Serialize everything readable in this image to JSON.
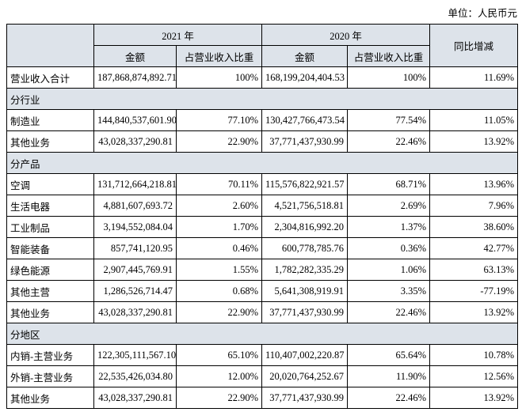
{
  "unit": "单位：人民币元",
  "table": {
    "header": {
      "year_a": "2021 年",
      "year_b": "2020 年",
      "yoy": "同比增减",
      "amount_a": "金额",
      "share_a": "占营业收入比重",
      "amount_b": "金额",
      "share_b": "占营业收入比重"
    },
    "rows": [
      [
        "营业收入合计",
        "187,868,874,892.71",
        "100%",
        "168,199,204,404.53",
        "100%",
        "11.69%"
      ],
      [
        "分行业"
      ],
      [
        "制造业",
        "144,840,537,601.90",
        "77.10%",
        "130,427,766,473.54",
        "77.54%",
        "11.05%"
      ],
      [
        "其他业务",
        "43,028,337,290.81",
        "22.90%",
        "37,771,437,930.99",
        "22.46%",
        "13.92%"
      ],
      [
        "分产品"
      ],
      [
        "空调",
        "131,712,664,218.81",
        "70.11%",
        "115,576,822,921.57",
        "68.71%",
        "13.96%"
      ],
      [
        "生活电器",
        "4,881,607,693.72",
        "2.60%",
        "4,521,756,518.81",
        "2.69%",
        "7.96%"
      ],
      [
        "工业制品",
        "3,194,552,084.04",
        "1.70%",
        "2,304,816,992.20",
        "1.37%",
        "38.60%"
      ],
      [
        "智能装备",
        "857,741,120.95",
        "0.46%",
        "600,778,785.76",
        "0.36%",
        "42.77%"
      ],
      [
        "绿色能源",
        "2,907,445,769.91",
        "1.55%",
        "1,782,282,335.29",
        "1.06%",
        "63.13%"
      ],
      [
        "其他主营",
        "1,286,526,714.47",
        "0.68%",
        "5,641,308,919.91",
        "3.35%",
        "-77.19%"
      ],
      [
        "其他业务",
        "43,028,337,290.81",
        "22.90%",
        "37,771,437,930.99",
        "22.46%",
        "13.92%"
      ],
      [
        "分地区"
      ],
      [
        "内销-主营业务",
        "122,305,111,567.10",
        "65.10%",
        "110,407,002,220.87",
        "65.64%",
        "10.78%"
      ],
      [
        "外销-主营业务",
        "22,535,426,034.80",
        "12.00%",
        "20,020,764,252.67",
        "11.90%",
        "12.56%"
      ],
      [
        "其他业务",
        "43,028,337,290.81",
        "22.90%",
        "37,771,437,930.99",
        "22.46%",
        "13.92%"
      ]
    ]
  }
}
